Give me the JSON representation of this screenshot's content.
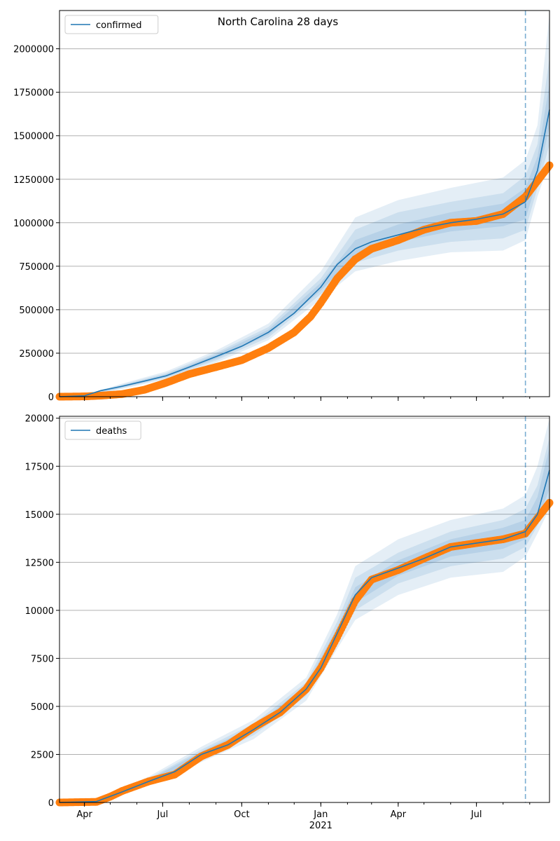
{
  "title": "North Carolina 28 days",
  "colors": {
    "model": "#1f77b4",
    "observed": "#ff7f0e",
    "band": "#1f77b4",
    "grid": "#b0b0b0",
    "forecast_line": "#1f77b4"
  },
  "x_axis": {
    "ticks": [
      {
        "date": "2020-04-01",
        "label": "Apr"
      },
      {
        "date": "2020-07-01",
        "label": "Jul"
      },
      {
        "date": "2020-10-01",
        "label": "Oct"
      },
      {
        "date": "2021-01-01",
        "label": "Jan"
      },
      {
        "date": "2021-04-01",
        "label": "Apr"
      },
      {
        "date": "2021-07-01",
        "label": "Jul"
      }
    ],
    "year_label": "2021",
    "range": [
      "2020-03-03",
      "2021-09-24"
    ]
  },
  "forecast_start": "2021-08-27",
  "chart_data": [
    {
      "type": "line",
      "legend": "confirmed",
      "legend_position": "upper-left",
      "grid": "y",
      "xlim": [
        "2020-03-03",
        "2021-09-24"
      ],
      "ylim": [
        0,
        2220000
      ],
      "yticks": [
        0,
        250000,
        500000,
        750000,
        1000000,
        1250000,
        1500000,
        1750000,
        2000000
      ],
      "model": [
        [
          "2020-03-03",
          0
        ],
        [
          "2020-04-01",
          5000
        ],
        [
          "2020-04-20",
          35000
        ],
        [
          "2020-05-15",
          60000
        ],
        [
          "2020-06-10",
          90000
        ],
        [
          "2020-07-05",
          120000
        ],
        [
          "2020-08-01",
          170000
        ],
        [
          "2020-09-01",
          230000
        ],
        [
          "2020-10-01",
          290000
        ],
        [
          "2020-11-01",
          370000
        ],
        [
          "2020-12-01",
          480000
        ],
        [
          "2021-01-01",
          630000
        ],
        [
          "2021-01-20",
          760000
        ],
        [
          "2021-02-10",
          850000
        ],
        [
          "2021-03-01",
          890000
        ],
        [
          "2021-04-01",
          930000
        ],
        [
          "2021-05-01",
          970000
        ],
        [
          "2021-06-01",
          1000000
        ],
        [
          "2021-07-01",
          1020000
        ],
        [
          "2021-08-01",
          1050000
        ],
        [
          "2021-08-27",
          1120000
        ],
        [
          "2021-09-10",
          1300000
        ],
        [
          "2021-09-24",
          1650000
        ]
      ],
      "bands": [
        {
          "level": "outer",
          "points": [
            [
              "2020-03-03",
              0,
              0
            ],
            [
              "2020-04-01",
              0,
              10000
            ],
            [
              "2020-05-15",
              45000,
              75000
            ],
            [
              "2020-07-05",
              100000,
              145000
            ],
            [
              "2020-09-01",
              195000,
              265000
            ],
            [
              "2020-11-01",
              325000,
              420000
            ],
            [
              "2021-01-01",
              560000,
              720000
            ],
            [
              "2021-02-10",
              720000,
              1030000
            ],
            [
              "2021-04-01",
              780000,
              1130000
            ],
            [
              "2021-06-01",
              830000,
              1200000
            ],
            [
              "2021-08-01",
              840000,
              1260000
            ],
            [
              "2021-08-27",
              900000,
              1360000
            ],
            [
              "2021-09-10",
              1150000,
              1560000
            ],
            [
              "2021-09-24",
              1350000,
              2200000
            ]
          ]
        },
        {
          "level": "middle",
          "points": [
            [
              "2020-03-03",
              0,
              0
            ],
            [
              "2020-04-01",
              1000,
              8000
            ],
            [
              "2020-05-15",
              50000,
              70000
            ],
            [
              "2020-07-05",
              108000,
              135000
            ],
            [
              "2020-09-01",
              208000,
              252000
            ],
            [
              "2020-11-01",
              340000,
              400000
            ],
            [
              "2021-01-01",
              590000,
              680000
            ],
            [
              "2021-02-10",
              770000,
              960000
            ],
            [
              "2021-04-01",
              840000,
              1060000
            ],
            [
              "2021-06-01",
              890000,
              1120000
            ],
            [
              "2021-08-01",
              910000,
              1170000
            ],
            [
              "2021-08-27",
              960000,
              1270000
            ],
            [
              "2021-09-10",
              1200000,
              1450000
            ],
            [
              "2021-09-24",
              1450000,
              1950000
            ]
          ]
        },
        {
          "level": "inner",
          "points": [
            [
              "2020-03-03",
              0,
              0
            ],
            [
              "2020-04-01",
              3000,
              7000
            ],
            [
              "2020-05-15",
              55000,
              65000
            ],
            [
              "2020-07-05",
              113000,
              128000
            ],
            [
              "2020-09-01",
              218000,
              242000
            ],
            [
              "2020-11-01",
              355000,
              385000
            ],
            [
              "2021-01-01",
              610000,
              655000
            ],
            [
              "2021-02-10",
              810000,
              900000
            ],
            [
              "2021-04-01",
              890000,
              990000
            ],
            [
              "2021-06-01",
              950000,
              1060000
            ],
            [
              "2021-08-01",
              980000,
              1110000
            ],
            [
              "2021-08-27",
              1020000,
              1200000
            ],
            [
              "2021-09-10",
              1250000,
              1380000
            ],
            [
              "2021-09-24",
              1550000,
              1800000
            ]
          ]
        }
      ],
      "observed": [
        [
          "2020-03-03",
          0
        ],
        [
          "2020-04-01",
          1500
        ],
        [
          "2020-04-20",
          6000
        ],
        [
          "2020-05-15",
          15000
        ],
        [
          "2020-06-10",
          40000
        ],
        [
          "2020-07-05",
          80000
        ],
        [
          "2020-08-01",
          130000
        ],
        [
          "2020-09-01",
          170000
        ],
        [
          "2020-10-01",
          210000
        ],
        [
          "2020-11-01",
          280000
        ],
        [
          "2020-12-01",
          370000
        ],
        [
          "2020-12-20",
          460000
        ],
        [
          "2021-01-01",
          540000
        ],
        [
          "2021-01-20",
          680000
        ],
        [
          "2021-02-10",
          790000
        ],
        [
          "2021-03-01",
          850000
        ],
        [
          "2021-04-01",
          900000
        ],
        [
          "2021-05-01",
          960000
        ],
        [
          "2021-06-01",
          1000000
        ],
        [
          "2021-07-01",
          1010000
        ],
        [
          "2021-08-01",
          1050000
        ],
        [
          "2021-08-27",
          1150000
        ],
        [
          "2021-09-10",
          1240000
        ],
        [
          "2021-09-24",
          1330000
        ]
      ]
    },
    {
      "type": "line",
      "legend": "deaths",
      "legend_position": "upper-left",
      "grid": "y",
      "xlim": [
        "2020-03-03",
        "2021-09-24"
      ],
      "ylim": [
        0,
        20100
      ],
      "yticks": [
        0,
        2500,
        5000,
        7500,
        10000,
        12500,
        15000,
        17500,
        20000
      ],
      "model": [
        [
          "2020-03-03",
          0
        ],
        [
          "2020-04-15",
          50
        ],
        [
          "2020-05-15",
          550
        ],
        [
          "2020-06-15",
          1100
        ],
        [
          "2020-07-15",
          1600
        ],
        [
          "2020-08-15",
          2500
        ],
        [
          "2020-09-15",
          3000
        ],
        [
          "2020-10-15",
          3800
        ],
        [
          "2020-11-15",
          4700
        ],
        [
          "2020-12-15",
          5900
        ],
        [
          "2021-01-01",
          7000
        ],
        [
          "2021-01-20",
          8800
        ],
        [
          "2021-02-10",
          10800
        ],
        [
          "2021-03-01",
          11700
        ],
        [
          "2021-04-01",
          12200
        ],
        [
          "2021-05-01",
          12700
        ],
        [
          "2021-06-01",
          13300
        ],
        [
          "2021-07-01",
          13500
        ],
        [
          "2021-08-01",
          13700
        ],
        [
          "2021-08-27",
          14100
        ],
        [
          "2021-09-10",
          15000
        ],
        [
          "2021-09-24",
          17300
        ]
      ],
      "bands": [
        {
          "level": "outer",
          "points": [
            [
              "2020-03-03",
              0,
              0
            ],
            [
              "2020-04-15",
              0,
              150
            ],
            [
              "2020-05-15",
              400,
              750
            ],
            [
              "2020-06-15",
              900,
              1350
            ],
            [
              "2020-08-15",
              2100,
              2900
            ],
            [
              "2020-10-15",
              3300,
              4300
            ],
            [
              "2020-12-15",
              5300,
              6500
            ],
            [
              "2021-01-20",
              8000,
              9800
            ],
            [
              "2021-02-10",
              9500,
              12300
            ],
            [
              "2021-04-01",
              10800,
              13700
            ],
            [
              "2021-06-01",
              11700,
              14700
            ],
            [
              "2021-08-01",
              12000,
              15300
            ],
            [
              "2021-08-27",
              12800,
              16000
            ],
            [
              "2021-09-10",
              14000,
              17500
            ],
            [
              "2021-09-24",
              15300,
              20000
            ]
          ]
        },
        {
          "level": "middle",
          "points": [
            [
              "2020-03-03",
              0,
              0
            ],
            [
              "2020-04-15",
              10,
              100
            ],
            [
              "2020-05-15",
              450,
              680
            ],
            [
              "2020-06-15",
              980,
              1250
            ],
            [
              "2020-08-15",
              2250,
              2750
            ],
            [
              "2020-10-15",
              3500,
              4100
            ],
            [
              "2020-12-15",
              5550,
              6250
            ],
            [
              "2021-01-20",
              8300,
              9400
            ],
            [
              "2021-02-10",
              10000,
              11700
            ],
            [
              "2021-04-01",
              11400,
              13000
            ],
            [
              "2021-06-01",
              12300,
              14100
            ],
            [
              "2021-08-01",
              12700,
              14700
            ],
            [
              "2021-08-27",
              13300,
              15300
            ],
            [
              "2021-09-10",
              14400,
              16500
            ],
            [
              "2021-09-24",
              15800,
              19000
            ]
          ]
        },
        {
          "level": "inner",
          "points": [
            [
              "2020-03-03",
              0,
              0
            ],
            [
              "2020-04-15",
              25,
              75
            ],
            [
              "2020-05-15",
              500,
              620
            ],
            [
              "2020-06-15",
              1040,
              1180
            ],
            [
              "2020-08-15",
              2350,
              2650
            ],
            [
              "2020-10-15",
              3650,
              3950
            ],
            [
              "2020-12-15",
              5700,
              6100
            ],
            [
              "2021-01-20",
              8550,
              9100
            ],
            [
              "2021-02-10",
              10400,
              11200
            ],
            [
              "2021-04-01",
              11800,
              12600
            ],
            [
              "2021-06-01",
              12800,
              13700
            ],
            [
              "2021-08-01",
              13200,
              14300
            ],
            [
              "2021-08-27",
              13700,
              14700
            ],
            [
              "2021-09-10",
              14700,
              15900
            ],
            [
              "2021-09-24",
              16300,
              18500
            ]
          ]
        }
      ],
      "observed": [
        [
          "2020-03-03",
          0
        ],
        [
          "2020-04-15",
          30
        ],
        [
          "2020-05-01",
          300
        ],
        [
          "2020-05-15",
          600
        ],
        [
          "2020-06-15",
          1100
        ],
        [
          "2020-07-15",
          1450
        ],
        [
          "2020-08-15",
          2400
        ],
        [
          "2020-09-15",
          3000
        ],
        [
          "2020-10-15",
          3900
        ],
        [
          "2020-11-15",
          4700
        ],
        [
          "2020-12-15",
          5900
        ],
        [
          "2021-01-01",
          7000
        ],
        [
          "2021-01-20",
          8600
        ],
        [
          "2021-02-10",
          10500
        ],
        [
          "2021-03-01",
          11600
        ],
        [
          "2021-04-01",
          12100
        ],
        [
          "2021-05-01",
          12700
        ],
        [
          "2021-06-01",
          13300
        ],
        [
          "2021-07-01",
          13500
        ],
        [
          "2021-08-01",
          13700
        ],
        [
          "2021-08-27",
          14000
        ],
        [
          "2021-09-10",
          14800
        ],
        [
          "2021-09-24",
          15600
        ]
      ]
    }
  ]
}
